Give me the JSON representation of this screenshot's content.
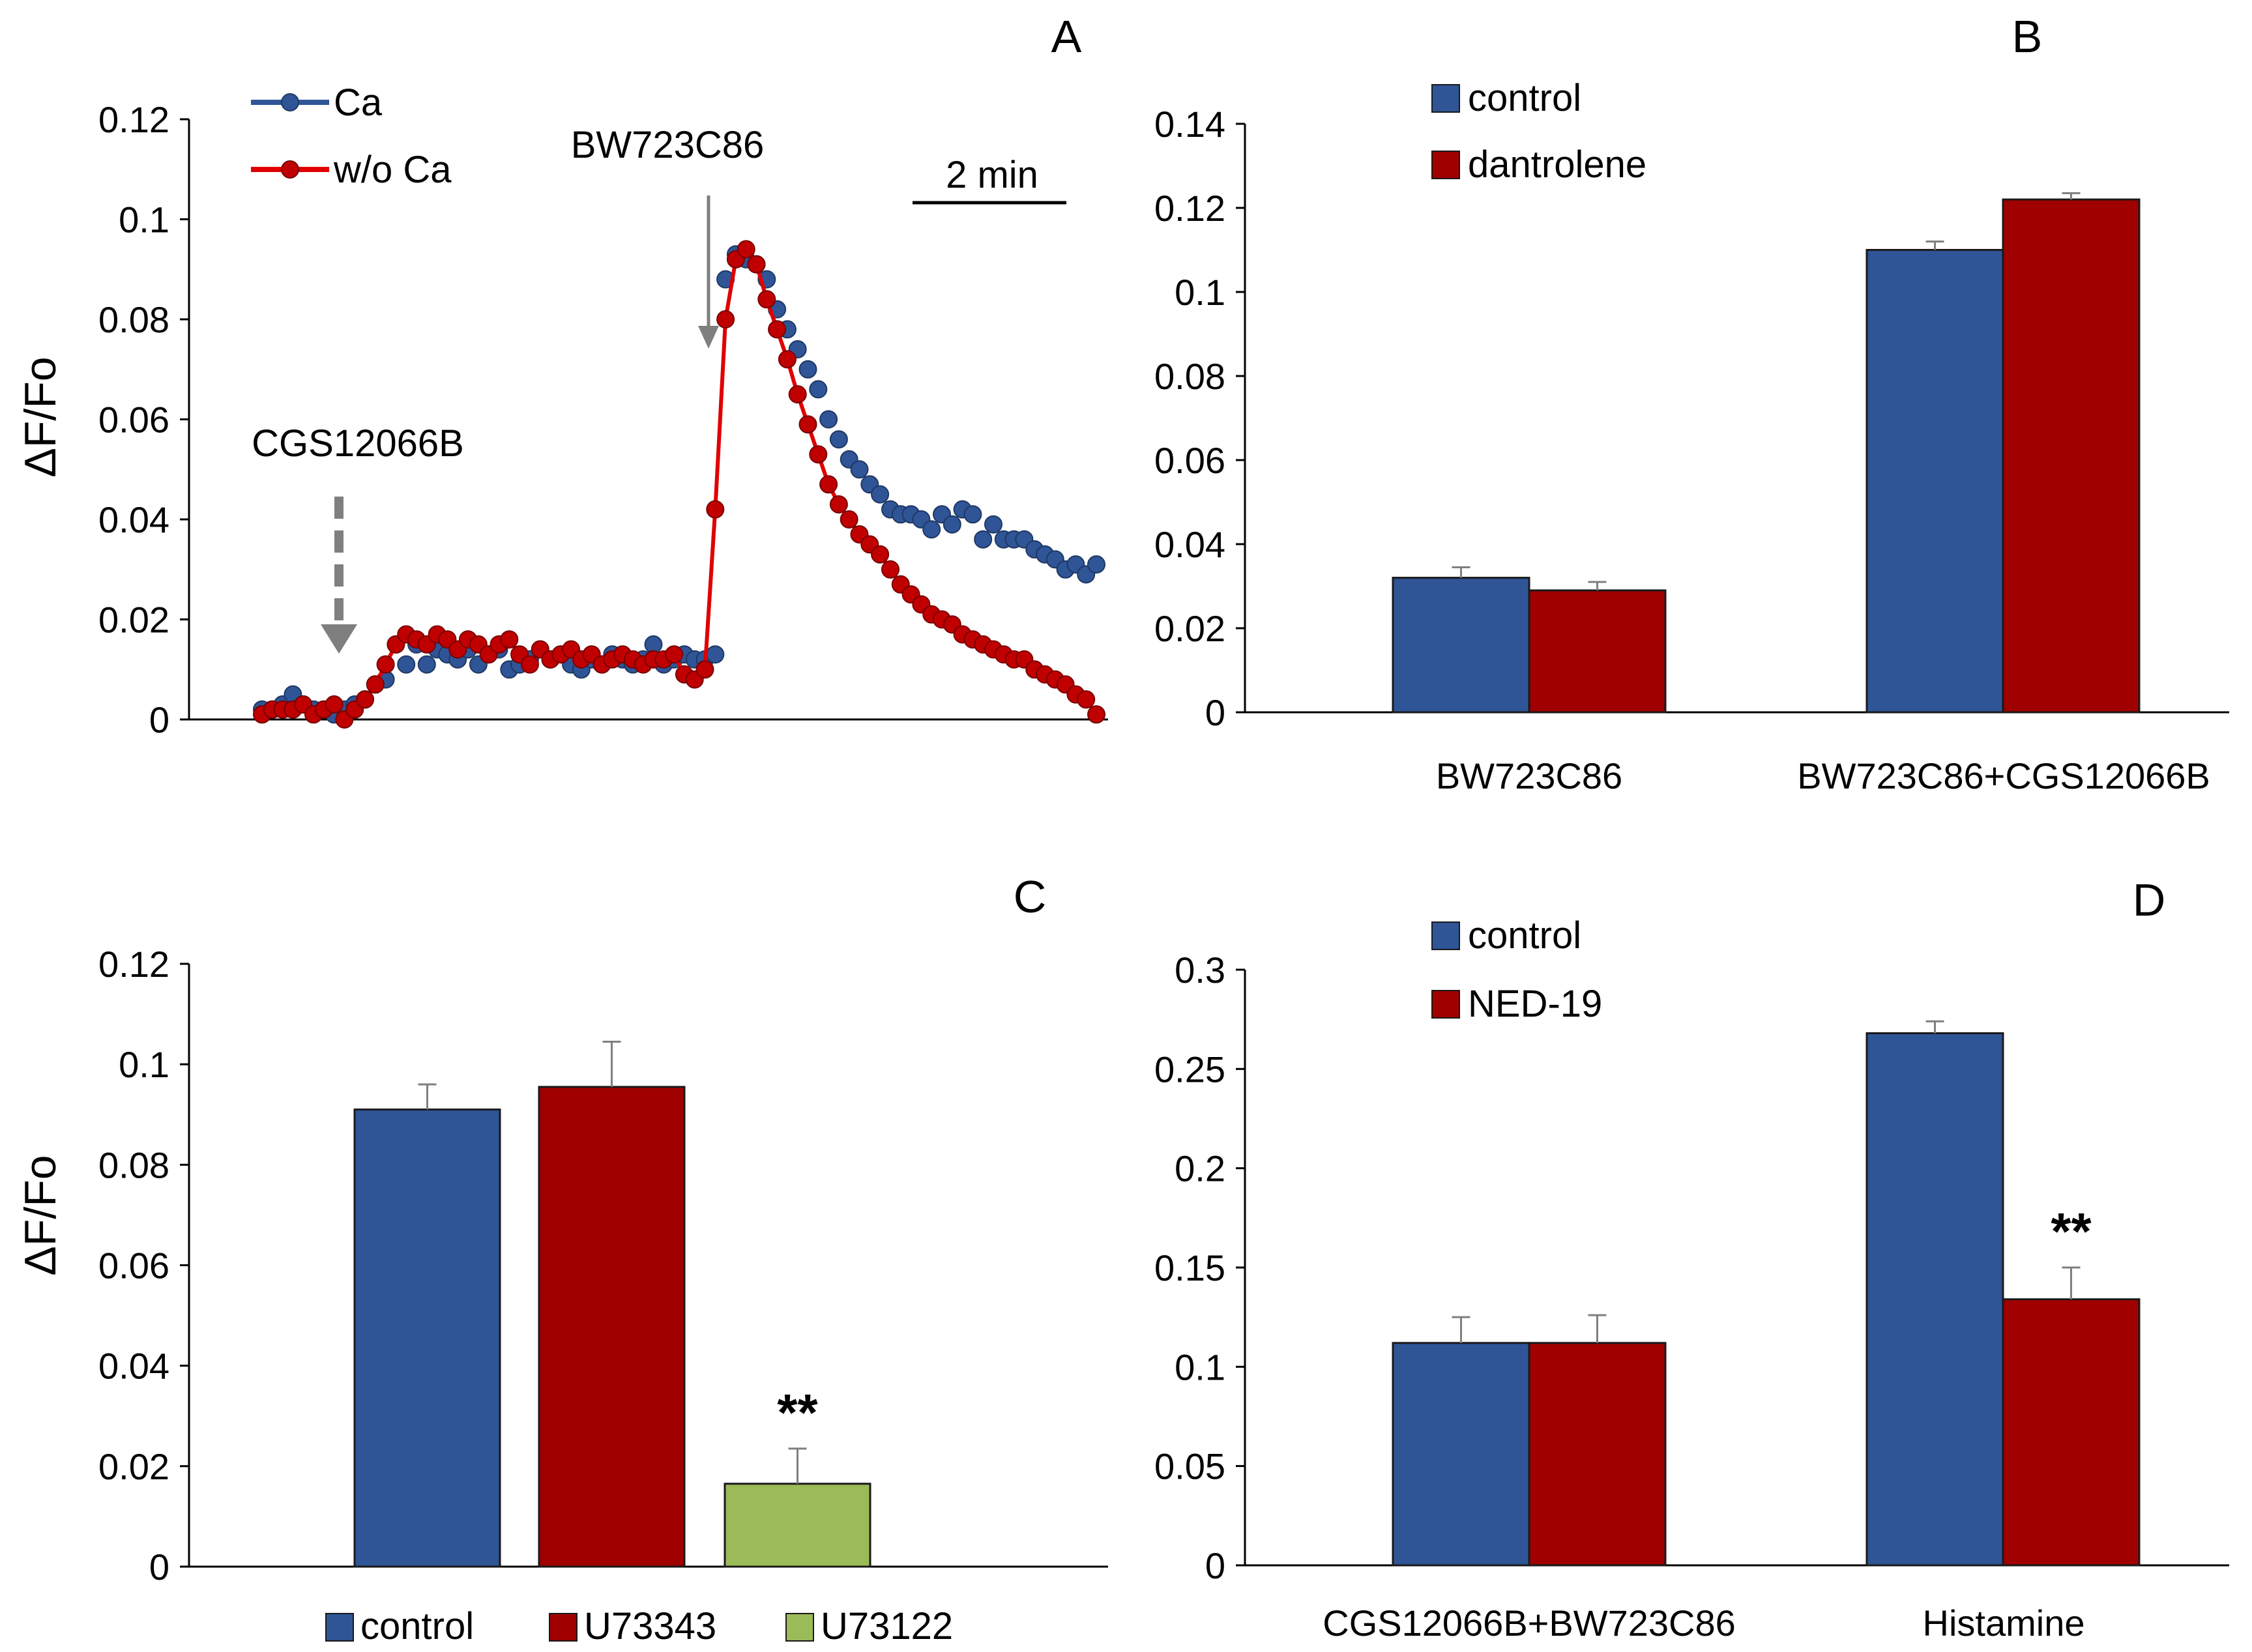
{
  "figure": {
    "colors": {
      "blue": "#2F5597",
      "red": "#A00000",
      "green": "#9BBB59",
      "red_line": "#E00000",
      "axis": "#000000",
      "arrow_grey": "#7F7F7F",
      "error_bar": "#7F7F7F"
    }
  },
  "chart_data": [
    {
      "panel": "A",
      "type": "line",
      "ylabel": "ΔF/Fo",
      "ylim": [
        0,
        0.12
      ],
      "yticks": [
        "0",
        "0.02",
        "0.04",
        "0.06",
        "0.08",
        "0.1",
        "0.12"
      ],
      "legend": [
        "Ca",
        "w/o Ca"
      ],
      "scale_bar_label": "2 min",
      "annotations": {
        "drug1": "CGS12066B",
        "drug2": "BW723C86"
      },
      "series": [
        {
          "name": "Ca",
          "color": "#2F5597",
          "values": [
            0.002,
            0.002,
            0.003,
            0.005,
            0.003,
            0.002,
            0.002,
            0.001,
            0.002,
            0.003,
            0.004,
            0.007,
            0.008,
            0.015,
            0.011,
            0.015,
            0.011,
            0.014,
            0.013,
            0.012,
            0.014,
            0.011,
            0.013,
            0.014,
            0.01,
            0.011,
            0.012,
            0.014,
            0.012,
            0.013,
            0.011,
            0.01,
            0.012,
            0.011,
            0.013,
            0.012,
            0.011,
            0.012,
            0.015,
            0.011,
            0.012,
            0.013,
            0.012,
            0.012,
            0.013,
            0.088,
            0.093,
            0.092,
            0.091,
            0.088,
            0.082,
            0.078,
            0.074,
            0.07,
            0.066,
            0.06,
            0.056,
            0.052,
            0.05,
            0.047,
            0.045,
            0.042,
            0.041,
            0.041,
            0.04,
            0.038,
            0.041,
            0.039,
            0.042,
            0.041,
            0.036,
            0.039,
            0.036,
            0.036,
            0.036,
            0.034,
            0.033,
            0.032,
            0.03,
            0.031,
            0.029,
            0.031
          ]
        },
        {
          "name": "w/o Ca",
          "color": "#E00000",
          "values": [
            0.001,
            0.002,
            0.002,
            0.002,
            0.003,
            0.001,
            0.002,
            0.003,
            0.0,
            0.002,
            0.004,
            0.007,
            0.011,
            0.015,
            0.017,
            0.016,
            0.015,
            0.017,
            0.016,
            0.014,
            0.016,
            0.015,
            0.013,
            0.015,
            0.016,
            0.013,
            0.011,
            0.014,
            0.012,
            0.013,
            0.014,
            0.012,
            0.013,
            0.011,
            0.012,
            0.013,
            0.012,
            0.011,
            0.012,
            0.012,
            0.013,
            0.009,
            0.008,
            0.01,
            0.042,
            0.08,
            0.092,
            0.094,
            0.091,
            0.084,
            0.078,
            0.072,
            0.065,
            0.059,
            0.053,
            0.047,
            0.043,
            0.04,
            0.037,
            0.035,
            0.033,
            0.03,
            0.027,
            0.025,
            0.023,
            0.021,
            0.02,
            0.019,
            0.017,
            0.016,
            0.015,
            0.014,
            0.013,
            0.012,
            0.012,
            0.01,
            0.009,
            0.008,
            0.007,
            0.005,
            0.004,
            0.001
          ]
        }
      ]
    },
    {
      "panel": "B",
      "type": "bar",
      "ylim": [
        0,
        0.14
      ],
      "yticks": [
        "0",
        "0.02",
        "0.04",
        "0.06",
        "0.08",
        "0.1",
        "0.12",
        "0.14"
      ],
      "categories": [
        "BW723C86",
        "BW723C86+CGS12066B"
      ],
      "series": [
        {
          "name": "control",
          "color": "#2F5597",
          "values": [
            0.032,
            0.11
          ],
          "errors": [
            0.0025,
            0.002
          ]
        },
        {
          "name": "dantrolene",
          "color": "#A00000",
          "values": [
            0.029,
            0.122
          ],
          "errors": [
            0.002,
            0.0015
          ]
        }
      ]
    },
    {
      "panel": "C",
      "type": "bar",
      "ylabel": "ΔF/Fo",
      "ylim": [
        0,
        0.12
      ],
      "yticks": [
        "0",
        "0.02",
        "0.04",
        "0.06",
        "0.08",
        "0.1",
        "0.12"
      ],
      "series": [
        {
          "name": "control",
          "color": "#2F5597",
          "value": 0.091,
          "error": 0.005
        },
        {
          "name": "U73343",
          "color": "#A00000",
          "value": 0.0955,
          "error": 0.009
        },
        {
          "name": "U73122",
          "color": "#9BBB59",
          "value": 0.0165,
          "error": 0.007,
          "significance": "**"
        }
      ]
    },
    {
      "panel": "D",
      "type": "bar",
      "ylim": [
        0,
        0.3
      ],
      "yticks": [
        "0",
        "0.05",
        "0.1",
        "0.15",
        "0.2",
        "0.25",
        "0.3"
      ],
      "categories": [
        "CGS12066B+BW723C86",
        "Histamine"
      ],
      "series": [
        {
          "name": "control",
          "color": "#2F5597",
          "values": [
            0.112,
            0.268
          ],
          "errors": [
            0.013,
            0.006
          ]
        },
        {
          "name": "NED-19",
          "color": "#A00000",
          "values": [
            0.112,
            0.134
          ],
          "errors": [
            0.014,
            0.016
          ],
          "significance": [
            null,
            "**"
          ]
        }
      ]
    }
  ]
}
